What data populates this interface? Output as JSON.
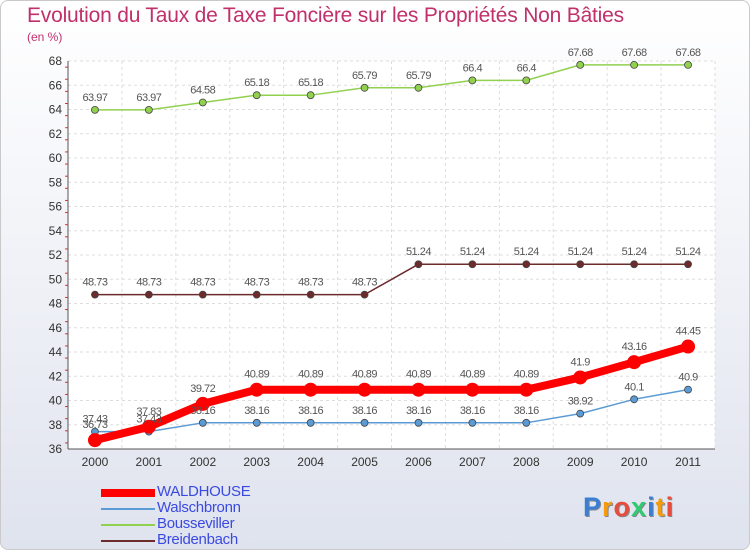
{
  "header": {
    "title": "Evolution du Taux de Taxe Foncière sur les Propriétés Non Bâties",
    "unit": "(en %)"
  },
  "logo": {
    "letters": [
      "P",
      "r",
      "o",
      "x",
      "i",
      "t",
      "i"
    ],
    "colors": [
      "#3a7fd5",
      "#f39c12",
      "#e74c3c",
      "#2ecc71",
      "#3a7fd5",
      "#f39c12",
      "#e74c3c"
    ]
  },
  "chart_data": {
    "type": "line",
    "title": "Evolution du Taux de Taxe Foncière sur les Propriétés Non Bâties",
    "ylabel": "(en %)",
    "xlabel": "",
    "x": [
      "2000",
      "2001",
      "2002",
      "2003",
      "2004",
      "2005",
      "2006",
      "2007",
      "2008",
      "2009",
      "2010",
      "2011"
    ],
    "ylim": [
      36,
      68
    ],
    "yticks": [
      36,
      38,
      40,
      42,
      44,
      46,
      48,
      50,
      52,
      54,
      56,
      58,
      60,
      62,
      64,
      66,
      68
    ],
    "grid": true,
    "legend_position": "bottom-left",
    "series": [
      {
        "name": "WALDHOUSE",
        "color": "#ff0000",
        "width": 8,
        "marker": 7,
        "values": [
          36.73,
          37.83,
          39.72,
          40.89,
          40.89,
          40.89,
          40.89,
          40.89,
          40.89,
          41.9,
          43.16,
          44.45
        ],
        "labels": [
          "36.73",
          "37.83",
          "39.72",
          "40.89",
          "40.89",
          "40.89",
          "40.89",
          "40.89",
          "40.89",
          "41.9",
          "43.16",
          "44.45"
        ]
      },
      {
        "name": "Walschbronn",
        "color": "#5b9bd5",
        "width": 1.5,
        "marker": 3.5,
        "values": [
          37.43,
          37.43,
          38.16,
          38.16,
          38.16,
          38.16,
          38.16,
          38.16,
          38.16,
          38.92,
          40.1,
          40.9
        ],
        "labels": [
          "37.43",
          "37.43",
          "38.16",
          "38.16",
          "38.16",
          "38.16",
          "38.16",
          "38.16",
          "38.16",
          "38.92",
          "40.1",
          "40.9"
        ]
      },
      {
        "name": "Bousseviller",
        "color": "#92d050",
        "width": 1.5,
        "marker": 3.5,
        "values": [
          63.97,
          63.97,
          64.58,
          65.18,
          65.18,
          65.79,
          65.79,
          66.4,
          66.4,
          67.68,
          67.68,
          67.68
        ],
        "labels": [
          "63.97",
          "63.97",
          "64.58",
          "65.18",
          "65.18",
          "65.79",
          "65.79",
          "66.4",
          "66.4",
          "67.68",
          "67.68",
          "67.68"
        ]
      },
      {
        "name": "Breidenbach",
        "color": "#6d2b2b",
        "width": 1.5,
        "marker": 3.5,
        "values": [
          48.73,
          48.73,
          48.73,
          48.73,
          48.73,
          48.73,
          51.24,
          51.24,
          51.24,
          51.24,
          51.24,
          51.24
        ],
        "labels": [
          "48.73",
          "48.73",
          "48.73",
          "48.73",
          "48.73",
          "48.73",
          "51.24",
          "51.24",
          "51.24",
          "51.24",
          "51.24",
          "51.24"
        ]
      }
    ]
  }
}
